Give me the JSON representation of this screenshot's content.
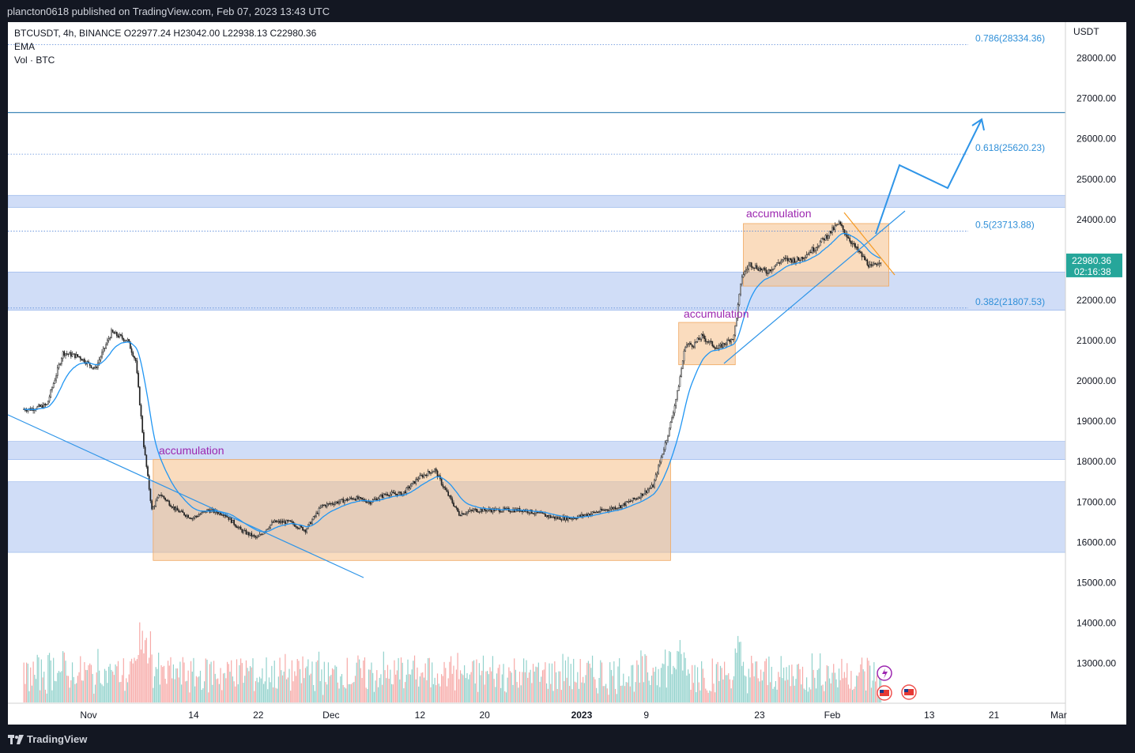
{
  "publisher_line": "plancton0618 published on TradingView.com, Feb 07, 2023 13:43 UTC",
  "branding": "TradingView",
  "legend": {
    "symbol_line": "BTCUSDT, 4h, BINANCE  O22977.24  H23042.00  L22938.13  C22980.36",
    "indicator_1": "EMA",
    "indicator_2": "Vol · BTC"
  },
  "price_axis": {
    "currency": "USDT",
    "current_price": "22980.36",
    "countdown": "02:16:38"
  },
  "colors": {
    "background": "#131722",
    "chart_bg": "#ffffff",
    "zone_blue": "#b7cbf3",
    "zone_orange": "#f6c089",
    "trend_line": "#2f95e8",
    "ema_line": "#2196f3",
    "candle_up": "#26a69a",
    "candle_down": "#ef5350",
    "label_purple": "#9c27b0",
    "price_badge": "#26a69a"
  },
  "annotations": {
    "acc_1": "accumulation",
    "acc_2": "accumulation",
    "acc_3": "accumulation"
  },
  "fib_labels": {
    "f786": "0.786(28334.36)",
    "f618": "0.618(25620.23)",
    "f5": "0.5(23713.88)",
    "f382": "0.382(21807.53)"
  },
  "chart_data": {
    "type": "candlestick",
    "title": "BTCUSDT, 4h, BINANCE",
    "x_ticks": [
      "Nov",
      "14",
      "22",
      "Dec",
      "12",
      "20",
      "2023",
      "9",
      "23",
      "Feb",
      "13",
      "21",
      "Mar"
    ],
    "y_ticks": [
      "13000.00",
      "14000.00",
      "15000.00",
      "16000.00",
      "17000.00",
      "18000.00",
      "19000.00",
      "20000.00",
      "21000.00",
      "22000.00",
      "23000.00",
      "24000.00",
      "25000.00",
      "26000.00",
      "27000.00",
      "28000.00"
    ],
    "ylim": [
      12200,
      28700
    ],
    "ohlc_last": {
      "open": 22977.24,
      "high": 23042.0,
      "low": 22938.13,
      "close": 22980.36
    },
    "fib_levels": [
      {
        "ratio": 0.786,
        "price": 28334.36
      },
      {
        "ratio": 0.618,
        "price": 25620.23
      },
      {
        "ratio": 0.5,
        "price": 23713.88
      },
      {
        "ratio": 0.382,
        "price": 21807.53
      }
    ],
    "horizontal_line": 26650,
    "blue_zones": [
      [
        24300,
        24600
      ],
      [
        21750,
        22700
      ],
      [
        18050,
        18500
      ],
      [
        15750,
        17500
      ]
    ],
    "orange_zones": [
      {
        "from": "Nov 9",
        "to": "Jan 12",
        "low": 15550,
        "high": 18050
      },
      {
        "from": "Jan 13",
        "to": "Jan 20",
        "low": 20400,
        "high": 21450
      },
      {
        "from": "Jan 21",
        "to": "Feb 8",
        "low": 22350,
        "high": 23900
      }
    ],
    "price_path_dates": [
      "Oct 25",
      "Oct 27",
      "Oct 29",
      "Oct 31",
      "Nov 2",
      "Nov 4",
      "Nov 6",
      "Nov 7",
      "Nov 8",
      "Nov 9",
      "Nov 10",
      "Nov 12",
      "Nov 14",
      "Nov 16",
      "Nov 18",
      "Nov 20",
      "Nov 22",
      "Nov 24",
      "Nov 26",
      "Nov 28",
      "Nov 30",
      "Dec 2",
      "Dec 4",
      "Dec 6",
      "Dec 8",
      "Dec 10",
      "Dec 12",
      "Dec 14",
      "Dec 15",
      "Dec 17",
      "Dec 19",
      "Dec 21",
      "Dec 23",
      "Dec 25",
      "Dec 27",
      "Dec 29",
      "Dec 31",
      "Jan 2",
      "Jan 4",
      "Jan 6",
      "Jan 8",
      "Jan 10",
      "Jan 12",
      "Jan 13",
      "Jan 14",
      "Jan 15",
      "Jan 16",
      "Jan 18",
      "Jan 20",
      "Jan 21",
      "Jan 22",
      "Jan 24",
      "Jan 26",
      "Jan 28",
      "Jan 30",
      "Feb 1",
      "Feb 2",
      "Feb 4",
      "Feb 6",
      "Feb 7"
    ],
    "price_path": [
      19300,
      19400,
      20700,
      20600,
      20300,
      21200,
      21000,
      20500,
      18400,
      16800,
      17200,
      16800,
      16600,
      16800,
      16700,
      16300,
      16100,
      16500,
      16500,
      16300,
      16900,
      17000,
      17100,
      17000,
      17200,
      17200,
      17600,
      17800,
      17400,
      16700,
      16800,
      16800,
      16800,
      16800,
      16700,
      16600,
      16600,
      16700,
      16800,
      16900,
      17100,
      17400,
      18800,
      19700,
      20900,
      20900,
      21100,
      20800,
      21100,
      22600,
      22900,
      22700,
      23000,
      23000,
      23300,
      23700,
      23900,
      23300,
      22800,
      22980
    ],
    "volume_title": "Vol · BTC"
  }
}
